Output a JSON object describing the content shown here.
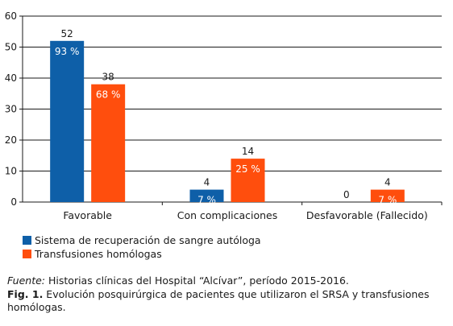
{
  "chart_data": {
    "type": "bar",
    "categories": [
      "Favorable",
      "Con complicaciones",
      "Desfavorable (Fallecido)"
    ],
    "series": [
      {
        "name": "Sistema de recuperación de sangre autóloga",
        "color": "#0e5fa8",
        "values": [
          52,
          4,
          0
        ],
        "percent_labels": [
          "93 %",
          "7 %",
          ""
        ]
      },
      {
        "name": "Transfusiones homólogas",
        "color": "#ff4e0d",
        "values": [
          38,
          14,
          4
        ],
        "percent_labels": [
          "68 %",
          "25 %",
          "7 %"
        ]
      }
    ],
    "yticks": [
      0,
      10,
      20,
      30,
      40,
      50,
      60
    ],
    "ylim": [
      0,
      60
    ],
    "grid": true,
    "legend_position": "bottom-left"
  },
  "caption": {
    "source_label": "Fuente:",
    "source_text": " Historias clínicas del Hospital “Alcívar”, período 2015-2016.",
    "figure_label": "Fig. 1.",
    "figure_text": " Evolución posquirúrgica de pacientes que utilizaron el SRSA y transfusiones homólogas."
  }
}
